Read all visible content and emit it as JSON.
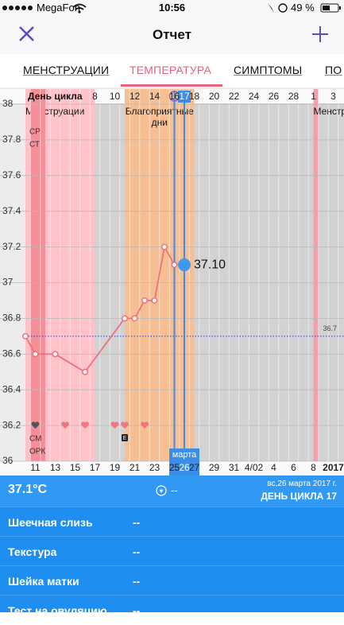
{
  "status_bar": {
    "carrier": "MegaFon",
    "time": "10:56",
    "battery": "49 %"
  },
  "header": {
    "title": "Отчет"
  },
  "tabs": [
    "МЕНСТРУАЦИИ",
    "ТЕМПЕРАТУРА",
    "СИМПТОМЫ",
    "ПО"
  ],
  "active_tab": 1,
  "chart_data": {
    "type": "line",
    "x_label": "День цикла",
    "x": [
      1,
      2,
      4,
      7,
      11,
      12,
      13,
      14,
      15,
      16,
      17
    ],
    "values": [
      36.7,
      36.6,
      36.6,
      36.5,
      36.8,
      36.8,
      36.9,
      36.9,
      37.2,
      37.1,
      37.1
    ],
    "value_labels": [
      null,
      null,
      null,
      null,
      null,
      null,
      null,
      null,
      null,
      null,
      "37.10"
    ],
    "color": "#f0707c",
    "xlim": [
      1,
      33
    ],
    "ylim": [
      36,
      38
    ],
    "yticks": [
      36,
      36.2,
      36.4,
      36.6,
      36.8,
      37,
      37.2,
      37.4,
      37.6,
      37.8,
      38
    ],
    "grid": true,
    "cycle_ticks": [
      8,
      10,
      12,
      14,
      16,
      17,
      18,
      20,
      22,
      24,
      26,
      28,
      {
        "value": 30,
        "label": "1"
      },
      {
        "value": 32,
        "label": "3"
      }
    ],
    "date_ticks": [
      {
        "value": 2,
        "label": "11"
      },
      {
        "value": 4,
        "label": "13"
      },
      {
        "value": 6,
        "label": "15"
      },
      {
        "value": 8,
        "label": "17"
      },
      {
        "value": 10,
        "label": "19"
      },
      {
        "value": 12,
        "label": "21"
      },
      {
        "value": 14,
        "label": "23"
      },
      {
        "value": 16,
        "label": "25"
      },
      {
        "value": 17,
        "label": "26"
      },
      {
        "value": 18,
        "label": "27"
      },
      {
        "value": 20,
        "label": "29"
      },
      {
        "value": 22,
        "label": "31"
      },
      {
        "value": 24,
        "label": "4/02"
      },
      {
        "value": 26,
        "label": "4"
      },
      {
        "value": 28,
        "label": "6"
      },
      {
        "value": 30,
        "label": "8"
      },
      {
        "value": 32,
        "label": "2017"
      }
    ],
    "month_label": "марта",
    "today": 17,
    "ovulation_day": 16,
    "coverline": 36.7,
    "bands": [
      {
        "name": "Менструации",
        "start": 1,
        "end": 8,
        "color": "#ffc2c8"
      },
      {
        "start": 1.5,
        "end": 3,
        "color": "#f78d97"
      },
      {
        "name": "Благоприятные дни",
        "start": 11,
        "end": 18,
        "color": "#f5bf93"
      },
      {
        "name": "Менстр",
        "start": 30,
        "end": 30.5,
        "color": "#f3a0a8"
      }
    ],
    "hearts": [
      {
        "day": 2,
        "color": "#555555"
      },
      {
        "day": 5,
        "color": "#f07484"
      },
      {
        "day": 7,
        "color": "#f07484"
      },
      {
        "day": 10,
        "color": "#f07484"
      },
      {
        "day": 11,
        "color": "#f07484"
      },
      {
        "day": 13,
        "color": "#f07484"
      }
    ],
    "heart_level": 36.2,
    "note_marks": [
      {
        "day": 11,
        "label": "E"
      }
    ],
    "side_labels": [
      "СР",
      "СТ",
      "СМ",
      "ОРК"
    ]
  },
  "summary": {
    "temperature": "37.1°C",
    "note": "--",
    "date": "вс,26 марта 2017 г.",
    "cycle_day": "ДЕНЬ ЦИКЛА 17"
  },
  "details": [
    {
      "label": "Шеечная слизь",
      "value": "--"
    },
    {
      "label": "Текстура",
      "value": "--"
    },
    {
      "label": "Шейка матки",
      "value": "--"
    },
    {
      "label": "Тест на овуляцию",
      "value": "--"
    }
  ]
}
